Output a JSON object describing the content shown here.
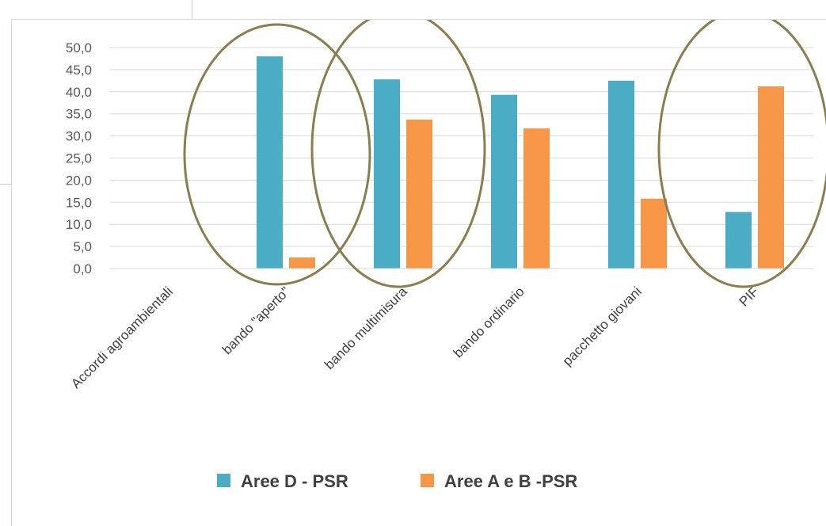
{
  "chart_data": {
    "type": "bar",
    "title": "",
    "xlabel": "",
    "ylabel": "",
    "ylim": [
      0,
      50
    ],
    "ytick_step": 5,
    "ytick_labels": [
      "0,0",
      "5,0",
      "10,0",
      "15,0",
      "20,0",
      "25,0",
      "30,0",
      "35,0",
      "40,0",
      "45,0",
      "50,0"
    ],
    "grid": true,
    "legend_position": "bottom",
    "categories": [
      "Accordi agroambientali",
      "bando \"aperto\"",
      "bando multimisura",
      "bando ordinario",
      "pacchetto giovani",
      "PIF"
    ],
    "series": [
      {
        "name": "Aree D - PSR",
        "color": "#4bacc6",
        "values": [
          0,
          48.0,
          42.8,
          39.3,
          42.5,
          12.8
        ]
      },
      {
        "name": "Aree A e B -PSR",
        "color": "#f79646",
        "values": [
          0,
          2.5,
          33.7,
          31.7,
          15.8,
          41.2
        ]
      }
    ],
    "annotations": [
      {
        "shape": "ellipse",
        "color": "#8b7d4d",
        "around": "bando \"aperto\""
      },
      {
        "shape": "ellipse",
        "color": "#8b7d4d",
        "around": "bando multimisura"
      },
      {
        "shape": "ellipse",
        "color": "#8b7d4d",
        "around": "PIF"
      }
    ]
  }
}
